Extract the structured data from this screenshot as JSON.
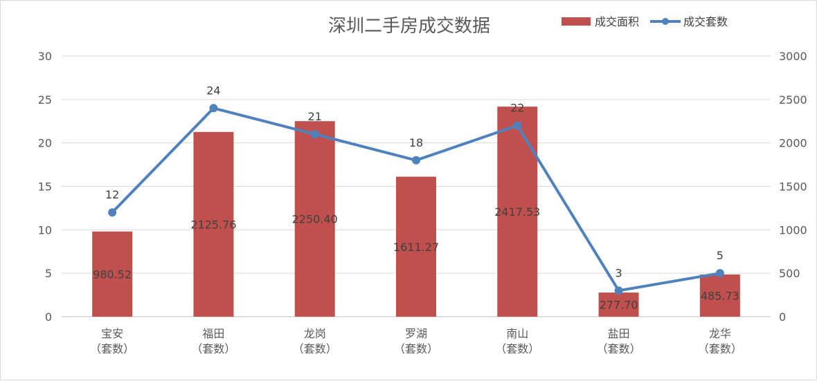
{
  "chart_data": {
    "type": "bar",
    "title": "深圳二手房成交数据",
    "categories": [
      [
        "宝安",
        "（套数）"
      ],
      [
        "福田",
        "（套数）"
      ],
      [
        "龙岗",
        "（套数）"
      ],
      [
        "罗湖",
        "（套数）"
      ],
      [
        "南山",
        "（套数）"
      ],
      [
        "盐田",
        "（套数）"
      ],
      [
        "龙华",
        "（套数）"
      ]
    ],
    "series": [
      {
        "name": "成交面积",
        "type": "bar",
        "axis": "right",
        "color": "#C0504D",
        "values": [
          980.52,
          2125.76,
          2250.4,
          1611.27,
          2417.53,
          277.7,
          485.73
        ],
        "labels": [
          "980.52",
          "2125.76",
          "2250.40",
          "1611.27",
          "2417.53",
          "277.70",
          "485.73"
        ]
      },
      {
        "name": "成交套数",
        "type": "line",
        "axis": "left",
        "color": "#4F81BD",
        "values": [
          12,
          24,
          21,
          18,
          22,
          3,
          5
        ],
        "labels": [
          "12",
          "24",
          "21",
          "18",
          "22",
          "3",
          "5"
        ]
      }
    ],
    "y_left": {
      "min": 0,
      "max": 30,
      "ticks": [
        "0",
        "5",
        "10",
        "15",
        "20",
        "25",
        "30"
      ]
    },
    "y_right": {
      "min": 0,
      "max": 3000,
      "ticks": [
        "0",
        "500",
        "1000",
        "1500",
        "2000",
        "2500",
        "3000"
      ]
    },
    "grid": true,
    "legend": "top-right"
  }
}
